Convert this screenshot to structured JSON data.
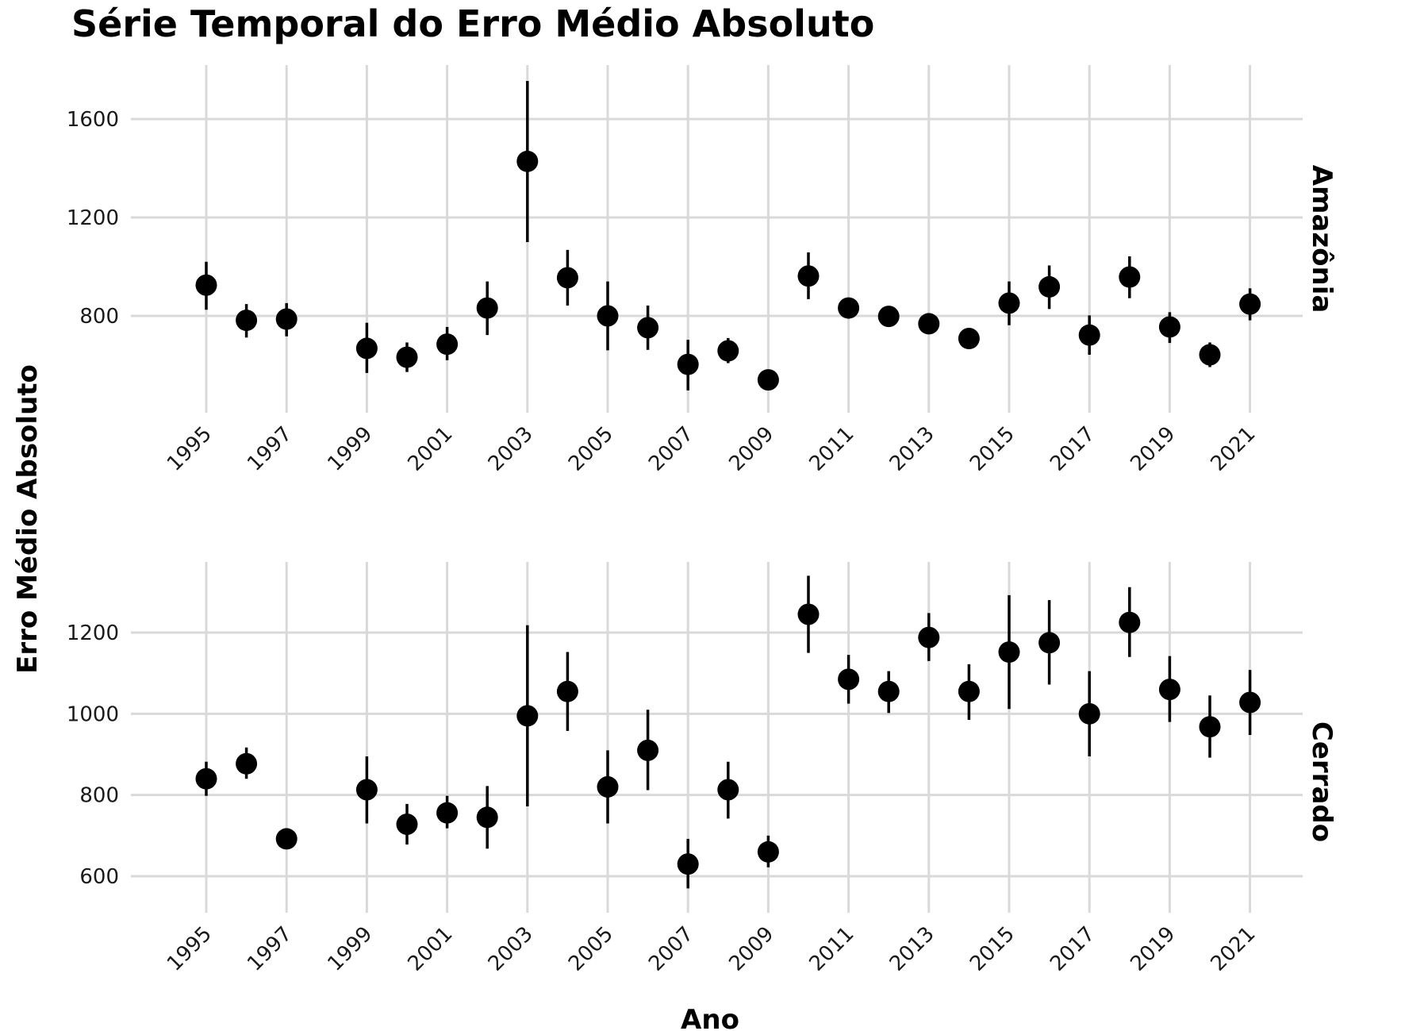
{
  "chart_data": {
    "type": "scatter",
    "title": "Série Temporal do Erro Médio Absoluto",
    "xlabel": "Ano",
    "ylabel": "Erro Médio Absoluto",
    "x_ticks": [
      "1995",
      "1997",
      "1999",
      "2001",
      "2003",
      "2005",
      "2007",
      "2009",
      "2011",
      "2013",
      "2015",
      "2017",
      "2019",
      "2021"
    ],
    "grid": true,
    "panels": [
      {
        "name": "Amazônia",
        "ylim": [
          420,
          1800
        ],
        "y_ticks": [
          800,
          1200,
          1600
        ],
        "points": [
          {
            "x": 1995,
            "y": 925,
            "low": 825,
            "high": 1020
          },
          {
            "x": 1996,
            "y": 782,
            "low": 712,
            "high": 848
          },
          {
            "x": 1997,
            "y": 787,
            "low": 717,
            "high": 852
          },
          {
            "x": 1999,
            "y": 668,
            "low": 568,
            "high": 772
          },
          {
            "x": 2000,
            "y": 632,
            "low": 572,
            "high": 692
          },
          {
            "x": 2001,
            "y": 685,
            "low": 620,
            "high": 755
          },
          {
            "x": 2002,
            "y": 832,
            "low": 722,
            "high": 940
          },
          {
            "x": 2003,
            "y": 1428,
            "low": 1100,
            "high": 1755
          },
          {
            "x": 2004,
            "y": 955,
            "low": 842,
            "high": 1068
          },
          {
            "x": 2005,
            "y": 800,
            "low": 660,
            "high": 940
          },
          {
            "x": 2006,
            "y": 752,
            "low": 662,
            "high": 842
          },
          {
            "x": 2007,
            "y": 603,
            "low": 497,
            "high": 703
          },
          {
            "x": 2008,
            "y": 658,
            "low": 608,
            "high": 710
          },
          {
            "x": 2009,
            "y": 540,
            "low": 540,
            "high": 540
          },
          {
            "x": 2010,
            "y": 962,
            "low": 868,
            "high": 1058
          },
          {
            "x": 2011,
            "y": 832,
            "low": 812,
            "high": 852
          },
          {
            "x": 2012,
            "y": 798,
            "low": 798,
            "high": 798
          },
          {
            "x": 2013,
            "y": 768,
            "low": 728,
            "high": 808
          },
          {
            "x": 2014,
            "y": 708,
            "low": 708,
            "high": 708
          },
          {
            "x": 2015,
            "y": 852,
            "low": 762,
            "high": 940
          },
          {
            "x": 2016,
            "y": 918,
            "low": 828,
            "high": 1005
          },
          {
            "x": 2017,
            "y": 722,
            "low": 642,
            "high": 802
          },
          {
            "x": 2018,
            "y": 958,
            "low": 872,
            "high": 1042
          },
          {
            "x": 2019,
            "y": 755,
            "low": 690,
            "high": 815
          },
          {
            "x": 2020,
            "y": 642,
            "low": 592,
            "high": 692
          },
          {
            "x": 2021,
            "y": 848,
            "low": 782,
            "high": 912
          }
        ]
      },
      {
        "name": "Cerrado",
        "ylim": [
          520,
          1380
        ],
        "y_ticks": [
          600,
          800,
          1000,
          1200
        ],
        "points": [
          {
            "x": 1995,
            "y": 840,
            "low": 798,
            "high": 882
          },
          {
            "x": 1996,
            "y": 877,
            "low": 840,
            "high": 917
          },
          {
            "x": 1997,
            "y": 692,
            "low": 692,
            "high": 692
          },
          {
            "x": 1999,
            "y": 813,
            "low": 730,
            "high": 895
          },
          {
            "x": 2000,
            "y": 728,
            "low": 678,
            "high": 778
          },
          {
            "x": 2001,
            "y": 756,
            "low": 718,
            "high": 798
          },
          {
            "x": 2002,
            "y": 745,
            "low": 668,
            "high": 822
          },
          {
            "x": 2003,
            "y": 995,
            "low": 772,
            "high": 1218
          },
          {
            "x": 2004,
            "y": 1055,
            "low": 958,
            "high": 1152
          },
          {
            "x": 2005,
            "y": 820,
            "low": 730,
            "high": 910
          },
          {
            "x": 2006,
            "y": 910,
            "low": 812,
            "high": 1010
          },
          {
            "x": 2007,
            "y": 630,
            "low": 570,
            "high": 692
          },
          {
            "x": 2008,
            "y": 813,
            "low": 742,
            "high": 882
          },
          {
            "x": 2009,
            "y": 660,
            "low": 622,
            "high": 700
          },
          {
            "x": 2010,
            "y": 1245,
            "low": 1150,
            "high": 1340
          },
          {
            "x": 2011,
            "y": 1085,
            "low": 1025,
            "high": 1145
          },
          {
            "x": 2012,
            "y": 1055,
            "low": 1002,
            "high": 1105
          },
          {
            "x": 2013,
            "y": 1188,
            "low": 1130,
            "high": 1248
          },
          {
            "x": 2014,
            "y": 1055,
            "low": 985,
            "high": 1122
          },
          {
            "x": 2015,
            "y": 1152,
            "low": 1012,
            "high": 1292
          },
          {
            "x": 2016,
            "y": 1175,
            "low": 1072,
            "high": 1280
          },
          {
            "x": 2017,
            "y": 1000,
            "low": 895,
            "high": 1105
          },
          {
            "x": 2018,
            "y": 1225,
            "low": 1140,
            "high": 1312
          },
          {
            "x": 2019,
            "y": 1060,
            "low": 980,
            "high": 1142
          },
          {
            "x": 2020,
            "y": 968,
            "low": 892,
            "high": 1045
          },
          {
            "x": 2021,
            "y": 1028,
            "low": 948,
            "high": 1108
          }
        ]
      }
    ]
  }
}
